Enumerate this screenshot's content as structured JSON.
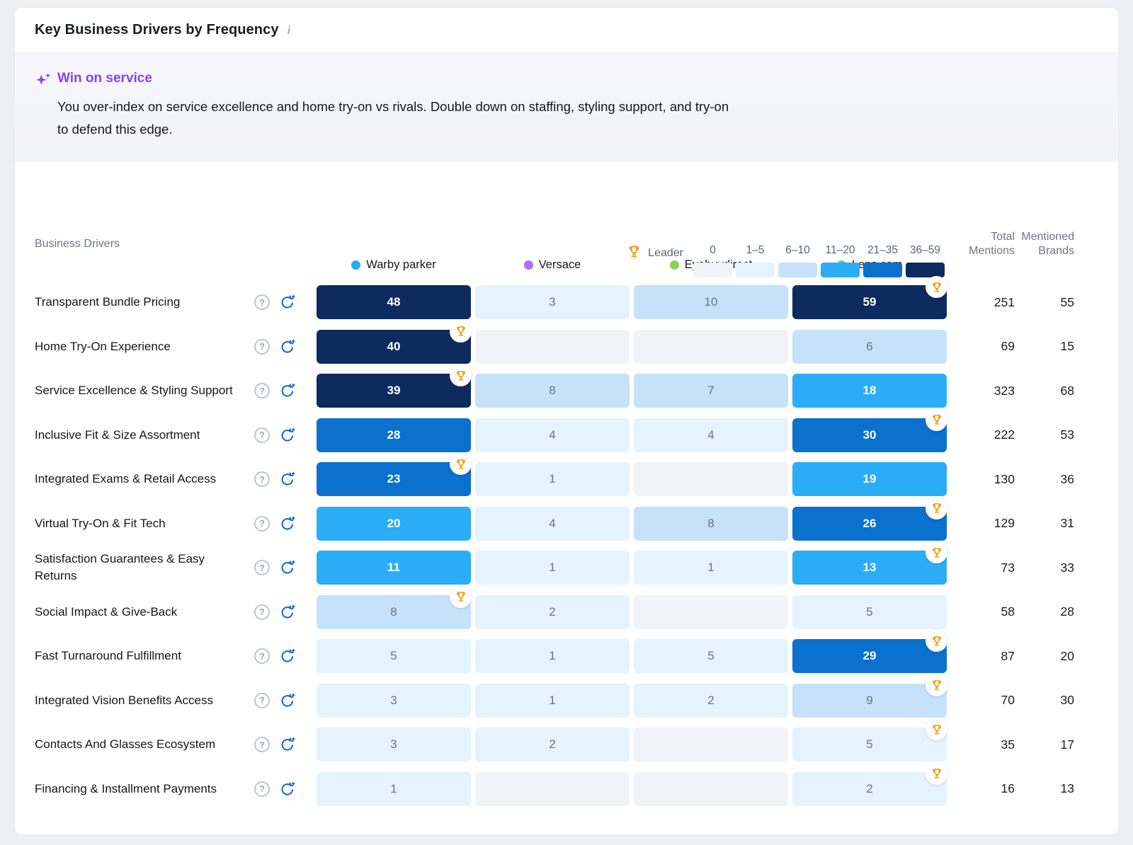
{
  "colors": {
    "bins": [
      "#f1f3f7",
      "#e4f3fd",
      "#c6e2fa",
      "#2cadf8",
      "#0b71ce",
      "#0d2b5e"
    ],
    "trophy": "#f29b0c",
    "refresh": "#1a67dd",
    "insight_gradient_from": "#8a3ff5",
    "insight_gradient_to": "#2f6bf6"
  },
  "icons": {
    "info": "i",
    "help": "?"
  },
  "header": {
    "title": "Key Business Drivers by Frequency"
  },
  "insight": {
    "title": "Win on service",
    "body": "You over-index on service excellence and home try-on vs rivals. Double down on staffing, styling support, and try-on to defend this edge."
  },
  "legend": {
    "leader_label": "Leader",
    "bins": [
      {
        "label": "0",
        "color": "#f1f3f7"
      },
      {
        "label": "1–5",
        "color": "#e4f3fd"
      },
      {
        "label": "6–10",
        "color": "#c6e2fa"
      },
      {
        "label": "11–20",
        "color": "#2cadf8"
      },
      {
        "label": "21–35",
        "color": "#0b71ce"
      },
      {
        "label": "36–59",
        "color": "#0d2b5e"
      }
    ]
  },
  "table": {
    "drivers_header": "Business Drivers",
    "total_header": "Total Mentions",
    "brands_header": "Mentioned Brands",
    "brands": [
      {
        "name": "Warby parker",
        "color": "#2aabf7"
      },
      {
        "name": "Versace",
        "color": "#b06df3"
      },
      {
        "name": "Eyebuydirect",
        "color": "#8ed053"
      },
      {
        "name": "Lens.com",
        "color": "#50d49e"
      }
    ],
    "rows": [
      {
        "label": "Transparent Bundle Pricing",
        "values": [
          48,
          3,
          10,
          59
        ],
        "leader_index": 3,
        "total": 251,
        "mentioned_brands": 55
      },
      {
        "label": "Home Try-On Experience",
        "values": [
          40,
          null,
          null,
          6
        ],
        "leader_index": 0,
        "total": 69,
        "mentioned_brands": 15
      },
      {
        "label": "Service Excellence & Styling Support",
        "values": [
          39,
          8,
          7,
          18
        ],
        "leader_index": 0,
        "total": 323,
        "mentioned_brands": 68
      },
      {
        "label": "Inclusive Fit & Size Assortment",
        "values": [
          28,
          4,
          4,
          30
        ],
        "leader_index": 3,
        "total": 222,
        "mentioned_brands": 53
      },
      {
        "label": "Integrated Exams & Retail Access",
        "values": [
          23,
          1,
          null,
          19
        ],
        "leader_index": 0,
        "total": 130,
        "mentioned_brands": 36
      },
      {
        "label": "Virtual Try-On & Fit Tech",
        "values": [
          20,
          4,
          8,
          26
        ],
        "leader_index": 3,
        "total": 129,
        "mentioned_brands": 31
      },
      {
        "label": "Satisfaction Guarantees & Easy Returns",
        "values": [
          11,
          1,
          1,
          13
        ],
        "leader_index": 3,
        "total": 73,
        "mentioned_brands": 33
      },
      {
        "label": "Social Impact & Give-Back",
        "values": [
          8,
          2,
          null,
          5
        ],
        "leader_index": 0,
        "total": 58,
        "mentioned_brands": 28
      },
      {
        "label": "Fast Turnaround Fulfillment",
        "values": [
          5,
          1,
          5,
          29
        ],
        "leader_index": 3,
        "total": 87,
        "mentioned_brands": 20
      },
      {
        "label": "Integrated Vision Benefits Access",
        "values": [
          3,
          1,
          2,
          9
        ],
        "leader_index": 3,
        "total": 70,
        "mentioned_brands": 30
      },
      {
        "label": "Contacts And Glasses Ecosystem",
        "values": [
          3,
          2,
          null,
          5
        ],
        "leader_index": 3,
        "total": 35,
        "mentioned_brands": 17
      },
      {
        "label": "Financing & Installment Payments",
        "values": [
          1,
          null,
          null,
          2
        ],
        "leader_index": 3,
        "total": 16,
        "mentioned_brands": 13
      }
    ]
  }
}
